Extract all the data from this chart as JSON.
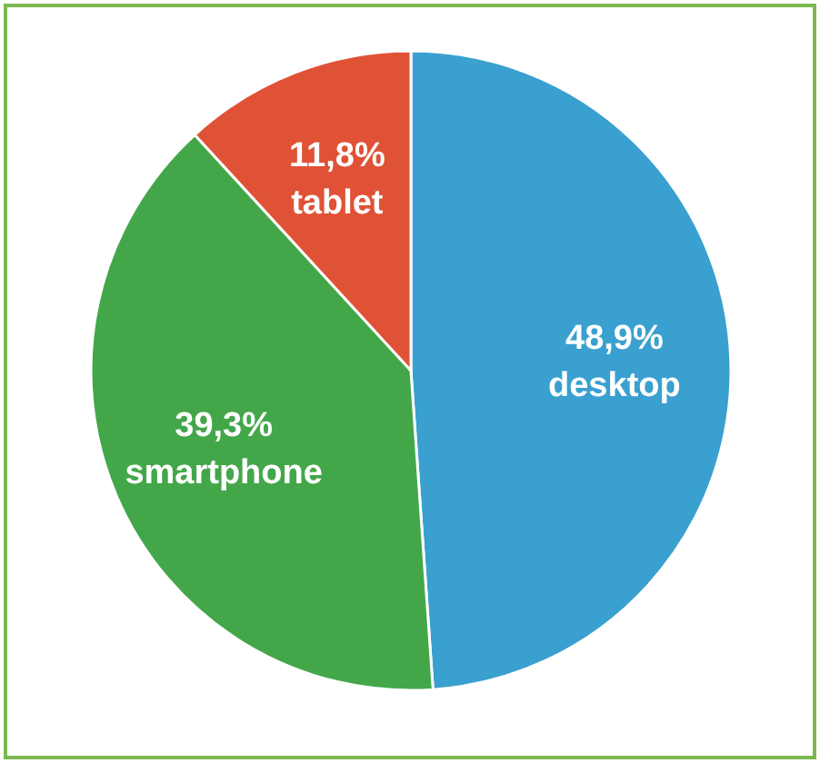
{
  "chart_data": {
    "type": "pie",
    "categories": [
      "desktop",
      "smartphone",
      "tablet"
    ],
    "values": [
      48.9,
      39.3,
      11.8
    ],
    "value_labels": [
      "48,9%",
      "39,3%",
      "11,8%"
    ],
    "colors": [
      "#3aa0cf",
      "#43a74a",
      "#e05236"
    ],
    "legend": false
  }
}
